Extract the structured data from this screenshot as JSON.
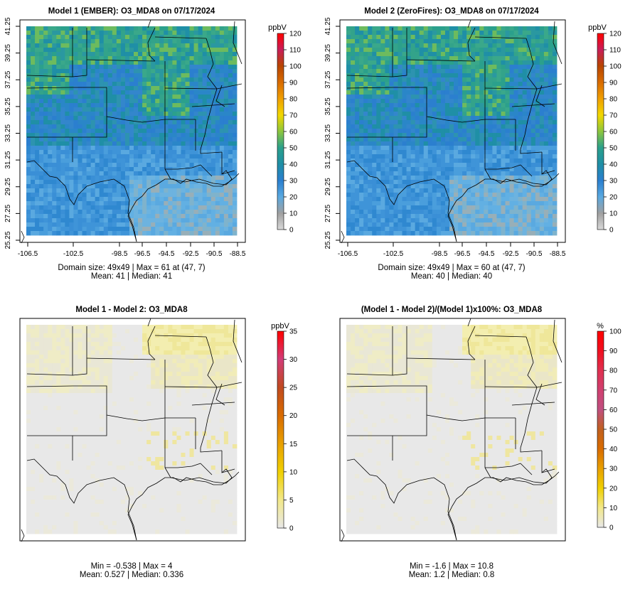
{
  "panels": [
    {
      "id": "model1",
      "title": "Model 1 (EMBER): O3_MDA8 on 07/17/2024",
      "unit": "ppbV",
      "scale": "ozone",
      "colorbar_ticks": [
        "120",
        "110",
        "100",
        "90",
        "80",
        "70",
        "60",
        "50",
        "40",
        "30",
        "20",
        "10",
        "0"
      ],
      "show_axes": true,
      "stats_line1": "Domain size: 49x49 | Max = 61 at (47, 7)",
      "stats_line2": "Mean: 41 |  Median: 41"
    },
    {
      "id": "model2",
      "title": "Model 2 (ZeroFires): O3_MDA8 on 07/17/2024",
      "unit": "ppbV",
      "scale": "ozone",
      "colorbar_ticks": [
        "120",
        "110",
        "100",
        "90",
        "80",
        "70",
        "60",
        "50",
        "40",
        "30",
        "20",
        "10",
        "0"
      ],
      "show_axes": true,
      "stats_line1": "Domain size: 49x49 | Max = 60 at (47, 7)",
      "stats_line2": "Mean: 40 |  Median: 40"
    },
    {
      "id": "diff",
      "title": "Model 1 - Model 2: O3_MDA8",
      "unit": "ppbV",
      "scale": "diff",
      "colorbar_ticks": [
        "35",
        "30",
        "25",
        "20",
        "15",
        "10",
        "5",
        "0"
      ],
      "show_axes": false,
      "stats_line1": "Min = -0.538 | Max = 4",
      "stats_line2": "Mean: 0.527 |  Median: 0.336"
    },
    {
      "id": "pct",
      "title": "(Model 1 - Model 2)/(Model 1)x100%: O3_MDA8",
      "unit": "%",
      "scale": "pct",
      "colorbar_ticks": [
        "100",
        "90",
        "80",
        "70",
        "60",
        "50",
        "40",
        "30",
        "20",
        "10",
        "0"
      ],
      "show_axes": false,
      "stats_line1": "Min = -1.6 | Max = 10.8",
      "stats_line2": "Mean: 1.2 |  Median: 0.8"
    }
  ],
  "axes": {
    "lon_ticks": [
      "-106.5",
      "-102.5",
      "-98.5",
      "-96.5",
      "-94.5",
      "-92.5",
      "-90.5",
      "-88.5"
    ],
    "lat_ticks": [
      "41.25",
      "39.25",
      "37.25",
      "35.25",
      "33.25",
      "31.25",
      "29.25",
      "27.25",
      "25.25"
    ]
  },
  "colors": {
    "ozone": [
      "#d9d9d9",
      "#a0a0a0",
      "#5aa9e0",
      "#2b7fcf",
      "#1f8fa6",
      "#2ba08c",
      "#8cc63f",
      "#f2d800",
      "#f0a000",
      "#d96c00",
      "#b84600",
      "#c81e5a",
      "#ff0000"
    ],
    "diff": [
      "#e8e8e8",
      "#f2e88a",
      "#f0d000",
      "#e8a000",
      "#d96c00",
      "#c04a20",
      "#d23c78",
      "#ff0000"
    ],
    "pct": [
      "#e8e8e8",
      "#f2e88a",
      "#f0d000",
      "#e8a000",
      "#d96c00",
      "#c06020",
      "#c05080",
      "#d04070",
      "#e03050",
      "#f01020",
      "#ff0000"
    ]
  }
}
